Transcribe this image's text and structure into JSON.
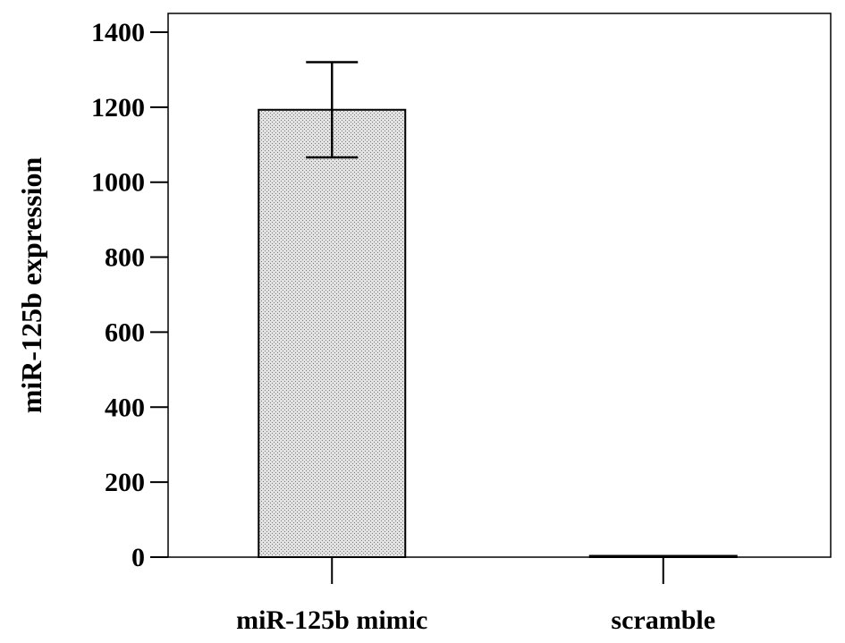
{
  "chart_data": {
    "type": "bar",
    "title": "",
    "xlabel": "",
    "ylabel": "miR-125b expression",
    "categories": [
      "miR-125b mimic",
      "scramble"
    ],
    "values": [
      1193,
      3
    ],
    "error": [
      127,
      0
    ],
    "ylim": [
      0,
      1450
    ],
    "yticks": [
      0,
      200,
      400,
      600,
      800,
      1000,
      1200,
      1400
    ],
    "grid": false,
    "legend": "none",
    "bar_fill": "#d6d6d6",
    "bar_stroke": "#000000"
  }
}
